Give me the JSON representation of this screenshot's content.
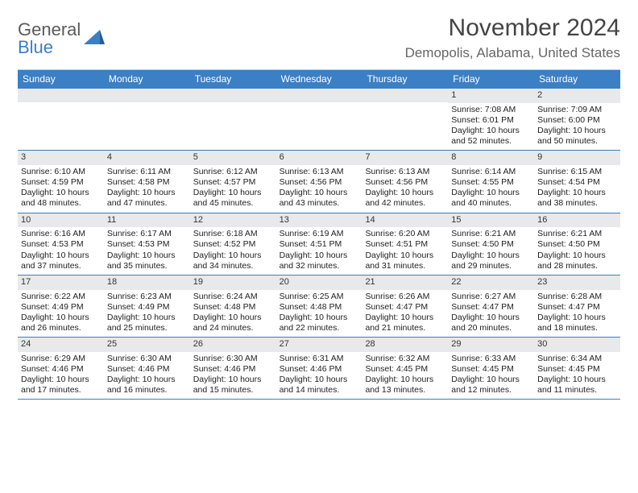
{
  "logo": {
    "line1": "General",
    "line2_blue": "Blue"
  },
  "title": "November 2024",
  "location": "Demopolis, Alabama, United States",
  "colors": {
    "header_bar": "#3b7fc4",
    "row_divider": "#3b7fc4",
    "num_row_bg": "#e7e9eb",
    "text": "#222222",
    "title_text": "#444444",
    "subtitle_text": "#666666"
  },
  "day_headers": [
    "Sunday",
    "Monday",
    "Tuesday",
    "Wednesday",
    "Thursday",
    "Friday",
    "Saturday"
  ],
  "weeks": [
    [
      {
        "num": "",
        "sunrise": "",
        "sunset": "",
        "daylight": ""
      },
      {
        "num": "",
        "sunrise": "",
        "sunset": "",
        "daylight": ""
      },
      {
        "num": "",
        "sunrise": "",
        "sunset": "",
        "daylight": ""
      },
      {
        "num": "",
        "sunrise": "",
        "sunset": "",
        "daylight": ""
      },
      {
        "num": "",
        "sunrise": "",
        "sunset": "",
        "daylight": ""
      },
      {
        "num": "1",
        "sunrise": "Sunrise: 7:08 AM",
        "sunset": "Sunset: 6:01 PM",
        "daylight": "Daylight: 10 hours and 52 minutes."
      },
      {
        "num": "2",
        "sunrise": "Sunrise: 7:09 AM",
        "sunset": "Sunset: 6:00 PM",
        "daylight": "Daylight: 10 hours and 50 minutes."
      }
    ],
    [
      {
        "num": "3",
        "sunrise": "Sunrise: 6:10 AM",
        "sunset": "Sunset: 4:59 PM",
        "daylight": "Daylight: 10 hours and 48 minutes."
      },
      {
        "num": "4",
        "sunrise": "Sunrise: 6:11 AM",
        "sunset": "Sunset: 4:58 PM",
        "daylight": "Daylight: 10 hours and 47 minutes."
      },
      {
        "num": "5",
        "sunrise": "Sunrise: 6:12 AM",
        "sunset": "Sunset: 4:57 PM",
        "daylight": "Daylight: 10 hours and 45 minutes."
      },
      {
        "num": "6",
        "sunrise": "Sunrise: 6:13 AM",
        "sunset": "Sunset: 4:56 PM",
        "daylight": "Daylight: 10 hours and 43 minutes."
      },
      {
        "num": "7",
        "sunrise": "Sunrise: 6:13 AM",
        "sunset": "Sunset: 4:56 PM",
        "daylight": "Daylight: 10 hours and 42 minutes."
      },
      {
        "num": "8",
        "sunrise": "Sunrise: 6:14 AM",
        "sunset": "Sunset: 4:55 PM",
        "daylight": "Daylight: 10 hours and 40 minutes."
      },
      {
        "num": "9",
        "sunrise": "Sunrise: 6:15 AM",
        "sunset": "Sunset: 4:54 PM",
        "daylight": "Daylight: 10 hours and 38 minutes."
      }
    ],
    [
      {
        "num": "10",
        "sunrise": "Sunrise: 6:16 AM",
        "sunset": "Sunset: 4:53 PM",
        "daylight": "Daylight: 10 hours and 37 minutes."
      },
      {
        "num": "11",
        "sunrise": "Sunrise: 6:17 AM",
        "sunset": "Sunset: 4:53 PM",
        "daylight": "Daylight: 10 hours and 35 minutes."
      },
      {
        "num": "12",
        "sunrise": "Sunrise: 6:18 AM",
        "sunset": "Sunset: 4:52 PM",
        "daylight": "Daylight: 10 hours and 34 minutes."
      },
      {
        "num": "13",
        "sunrise": "Sunrise: 6:19 AM",
        "sunset": "Sunset: 4:51 PM",
        "daylight": "Daylight: 10 hours and 32 minutes."
      },
      {
        "num": "14",
        "sunrise": "Sunrise: 6:20 AM",
        "sunset": "Sunset: 4:51 PM",
        "daylight": "Daylight: 10 hours and 31 minutes."
      },
      {
        "num": "15",
        "sunrise": "Sunrise: 6:21 AM",
        "sunset": "Sunset: 4:50 PM",
        "daylight": "Daylight: 10 hours and 29 minutes."
      },
      {
        "num": "16",
        "sunrise": "Sunrise: 6:21 AM",
        "sunset": "Sunset: 4:50 PM",
        "daylight": "Daylight: 10 hours and 28 minutes."
      }
    ],
    [
      {
        "num": "17",
        "sunrise": "Sunrise: 6:22 AM",
        "sunset": "Sunset: 4:49 PM",
        "daylight": "Daylight: 10 hours and 26 minutes."
      },
      {
        "num": "18",
        "sunrise": "Sunrise: 6:23 AM",
        "sunset": "Sunset: 4:49 PM",
        "daylight": "Daylight: 10 hours and 25 minutes."
      },
      {
        "num": "19",
        "sunrise": "Sunrise: 6:24 AM",
        "sunset": "Sunset: 4:48 PM",
        "daylight": "Daylight: 10 hours and 24 minutes."
      },
      {
        "num": "20",
        "sunrise": "Sunrise: 6:25 AM",
        "sunset": "Sunset: 4:48 PM",
        "daylight": "Daylight: 10 hours and 22 minutes."
      },
      {
        "num": "21",
        "sunrise": "Sunrise: 6:26 AM",
        "sunset": "Sunset: 4:47 PM",
        "daylight": "Daylight: 10 hours and 21 minutes."
      },
      {
        "num": "22",
        "sunrise": "Sunrise: 6:27 AM",
        "sunset": "Sunset: 4:47 PM",
        "daylight": "Daylight: 10 hours and 20 minutes."
      },
      {
        "num": "23",
        "sunrise": "Sunrise: 6:28 AM",
        "sunset": "Sunset: 4:47 PM",
        "daylight": "Daylight: 10 hours and 18 minutes."
      }
    ],
    [
      {
        "num": "24",
        "sunrise": "Sunrise: 6:29 AM",
        "sunset": "Sunset: 4:46 PM",
        "daylight": "Daylight: 10 hours and 17 minutes."
      },
      {
        "num": "25",
        "sunrise": "Sunrise: 6:30 AM",
        "sunset": "Sunset: 4:46 PM",
        "daylight": "Daylight: 10 hours and 16 minutes."
      },
      {
        "num": "26",
        "sunrise": "Sunrise: 6:30 AM",
        "sunset": "Sunset: 4:46 PM",
        "daylight": "Daylight: 10 hours and 15 minutes."
      },
      {
        "num": "27",
        "sunrise": "Sunrise: 6:31 AM",
        "sunset": "Sunset: 4:46 PM",
        "daylight": "Daylight: 10 hours and 14 minutes."
      },
      {
        "num": "28",
        "sunrise": "Sunrise: 6:32 AM",
        "sunset": "Sunset: 4:45 PM",
        "daylight": "Daylight: 10 hours and 13 minutes."
      },
      {
        "num": "29",
        "sunrise": "Sunrise: 6:33 AM",
        "sunset": "Sunset: 4:45 PM",
        "daylight": "Daylight: 10 hours and 12 minutes."
      },
      {
        "num": "30",
        "sunrise": "Sunrise: 6:34 AM",
        "sunset": "Sunset: 4:45 PM",
        "daylight": "Daylight: 10 hours and 11 minutes."
      }
    ]
  ]
}
